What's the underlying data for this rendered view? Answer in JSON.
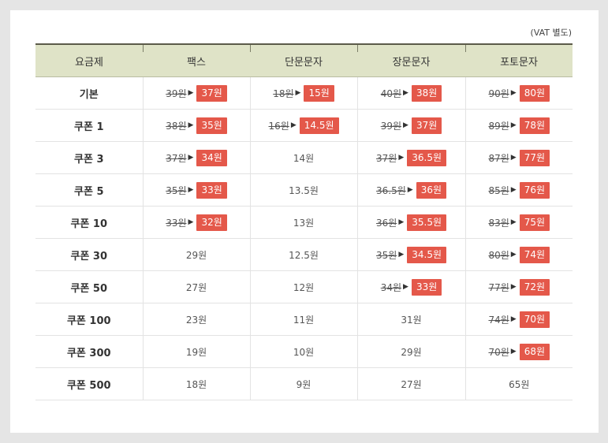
{
  "vat_note": "(VAT 별도)",
  "headers": [
    "요금제",
    "팩스",
    "단문문자",
    "장문문자",
    "포토문자"
  ],
  "rows": [
    {
      "plan": "기본",
      "cells": [
        {
          "old": "39원",
          "new": "37원"
        },
        {
          "old": "18원",
          "new": "15원"
        },
        {
          "old": "40원",
          "new": "38원"
        },
        {
          "old": "90원",
          "new": "80원"
        }
      ]
    },
    {
      "plan": "쿠폰 1",
      "cells": [
        {
          "old": "38원",
          "new": "35원"
        },
        {
          "old": "16원",
          "new": "14.5원"
        },
        {
          "old": "39원",
          "new": "37원"
        },
        {
          "old": "89원",
          "new": "78원"
        }
      ]
    },
    {
      "plan": "쿠폰 3",
      "cells": [
        {
          "old": "37원",
          "new": "34원"
        },
        {
          "value": "14원"
        },
        {
          "old": "37원",
          "new": "36.5원"
        },
        {
          "old": "87원",
          "new": "77원"
        }
      ]
    },
    {
      "plan": "쿠폰 5",
      "cells": [
        {
          "old": "35원",
          "new": "33원"
        },
        {
          "value": "13.5원"
        },
        {
          "old": "36.5원",
          "new": "36원"
        },
        {
          "old": "85원",
          "new": "76원"
        }
      ]
    },
    {
      "plan": "쿠폰 10",
      "cells": [
        {
          "old": "33원",
          "new": "32원"
        },
        {
          "value": "13원"
        },
        {
          "old": "36원",
          "new": "35.5원"
        },
        {
          "old": "83원",
          "new": "75원"
        }
      ]
    },
    {
      "plan": "쿠폰 30",
      "cells": [
        {
          "value": "29원"
        },
        {
          "value": "12.5원"
        },
        {
          "old": "35원",
          "new": "34.5원"
        },
        {
          "old": "80원",
          "new": "74원"
        }
      ]
    },
    {
      "plan": "쿠폰 50",
      "cells": [
        {
          "value": "27원"
        },
        {
          "value": "12원"
        },
        {
          "old": "34원",
          "new": "33원"
        },
        {
          "old": "77원",
          "new": "72원"
        }
      ]
    },
    {
      "plan": "쿠폰 100",
      "cells": [
        {
          "value": "23원"
        },
        {
          "value": "11원"
        },
        {
          "value": "31원"
        },
        {
          "old": "74원",
          "new": "70원"
        }
      ]
    },
    {
      "plan": "쿠폰 300",
      "cells": [
        {
          "value": "19원"
        },
        {
          "value": "10원"
        },
        {
          "value": "29원"
        },
        {
          "old": "70원",
          "new": "68원"
        }
      ]
    },
    {
      "plan": "쿠폰 500",
      "cells": [
        {
          "value": "18원"
        },
        {
          "value": "9원"
        },
        {
          "value": "27원"
        },
        {
          "value": "65원"
        }
      ]
    }
  ]
}
